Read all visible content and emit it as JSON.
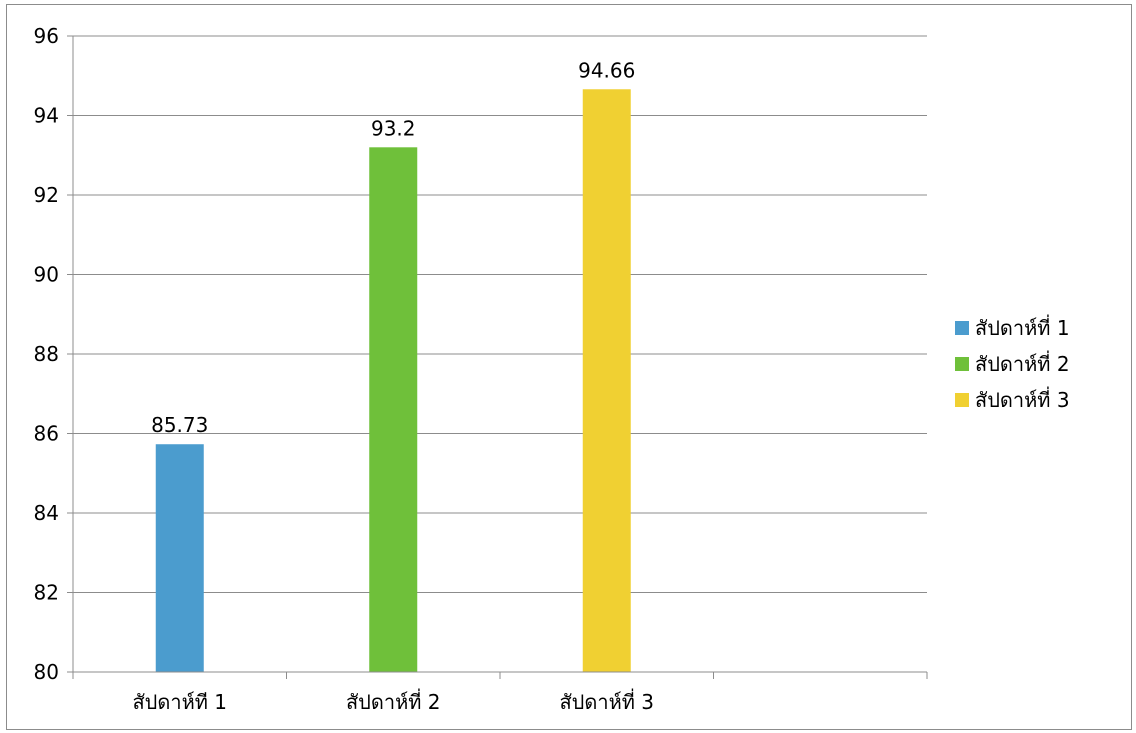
{
  "chart_data": {
    "type": "bar",
    "categories": [
      "สัปดาห์ที  1",
      "สัปดาห์ที่  2",
      "สัปดาห์ที่  3",
      ""
    ],
    "series": [
      {
        "name": "สัปดาห์ที่  1",
        "color": "#4b9cce",
        "values": [
          85.73,
          null,
          null,
          null
        ],
        "labels": [
          "85.73",
          "",
          "",
          ""
        ]
      },
      {
        "name": "สัปดาห์ที่  2",
        "color": "#6fc03a",
        "values": [
          null,
          93.2,
          null,
          null
        ],
        "labels": [
          "",
          "93.2",
          "",
          ""
        ]
      },
      {
        "name": "สัปดาห์ที่  3",
        "color": "#f0d032",
        "values": [
          null,
          null,
          94.66,
          null
        ],
        "labels": [
          "",
          "",
          "94.66",
          ""
        ]
      }
    ],
    "ylim": [
      80,
      96
    ],
    "yticks": [
      "80",
      "82",
      "84",
      "86",
      "88",
      "90",
      "92",
      "94",
      "96"
    ],
    "ytick_values": [
      80,
      82,
      84,
      86,
      88,
      90,
      92,
      94,
      96
    ],
    "grid": true,
    "legend_position": "right",
    "title": "",
    "xlabel": "",
    "ylabel": ""
  }
}
